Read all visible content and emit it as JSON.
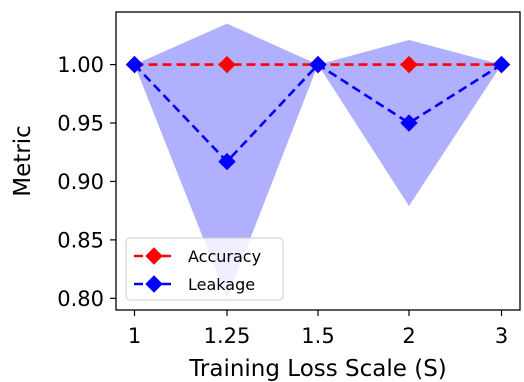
{
  "chart_data": {
    "type": "line",
    "xlabel": "Training Loss Scale (S)",
    "ylabel": "Metric",
    "categories": [
      "1",
      "1.25",
      "1.5",
      "2",
      "3"
    ],
    "ylim": [
      0.79,
      1.045
    ],
    "yticks": [
      "0.80",
      "0.85",
      "0.90",
      "0.95",
      "1.00"
    ],
    "ytick_values": [
      0.8,
      0.85,
      0.9,
      0.95,
      1.0
    ],
    "legend_position": "lower-left",
    "grid": false,
    "series": [
      {
        "name": "Accuracy",
        "values": [
          1.0,
          1.0,
          1.0,
          1.0,
          1.0
        ],
        "color": "#ff0000",
        "marker": "diamond",
        "linestyle": "dashed"
      },
      {
        "name": "Leakage",
        "values": [
          1.0,
          0.917,
          1.0,
          0.95,
          1.0
        ],
        "band_upper": [
          1.0,
          1.035,
          1.0,
          1.021,
          1.0
        ],
        "band_lower": [
          1.0,
          0.8,
          1.0,
          0.879,
          1.0
        ],
        "color": "#0000ff",
        "band_color": "#b0b0ff",
        "marker": "diamond",
        "linestyle": "dashed"
      }
    ]
  }
}
